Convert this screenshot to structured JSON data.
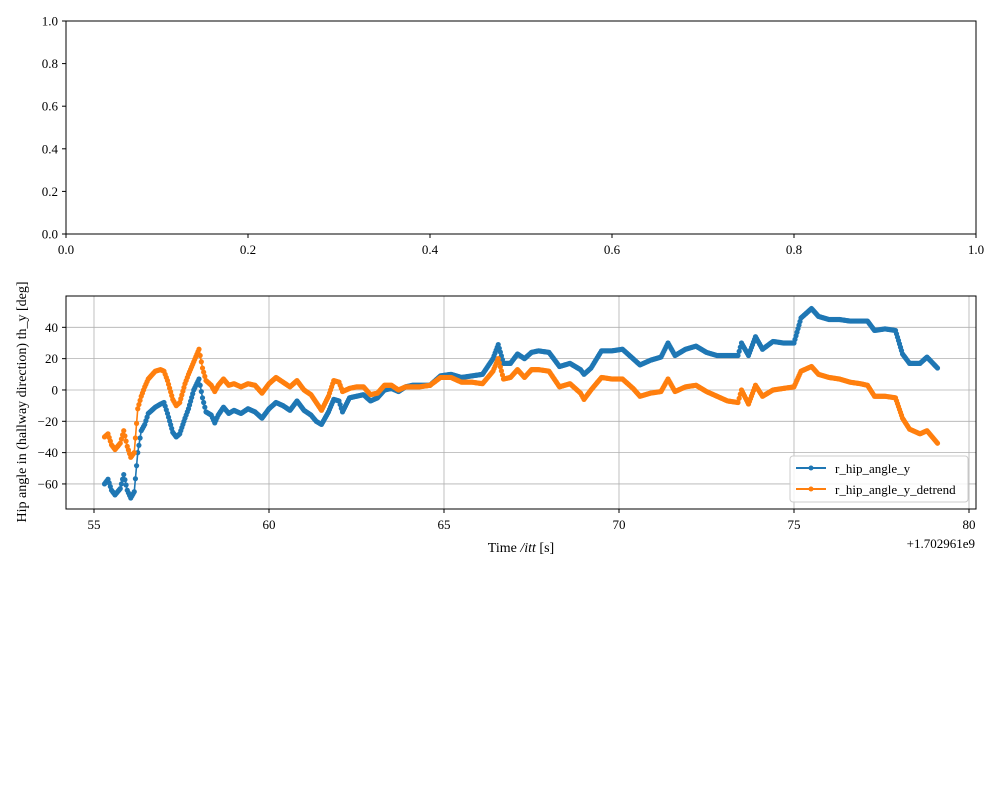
{
  "chart_data": [
    {
      "type": "line",
      "empty": true,
      "xlim": [
        0.0,
        1.0
      ],
      "ylim": [
        0.0,
        1.0
      ],
      "x_ticks": [
        "0.0",
        "0.2",
        "0.4",
        "0.6",
        "0.8",
        "1.0"
      ],
      "y_ticks": [
        "0.0",
        "0.2",
        "0.4",
        "0.6",
        "0.8",
        "1.0"
      ],
      "grid": false
    },
    {
      "type": "line",
      "xlabel_pre": "Time ",
      "xlabel_math": "/itt",
      "xlabel_post": " [s]",
      "ylabel": "Hip angle in (hallway direction) th_y [deg]",
      "x_offset_label": "+1.702961e9",
      "xlim": [
        54.2,
        80.2
      ],
      "ylim": [
        -76,
        60
      ],
      "x_ticks": [
        55,
        60,
        65,
        70,
        75,
        80
      ],
      "x_tick_labels": [
        "55",
        "60",
        "65",
        "70",
        "75",
        "80"
      ],
      "y_ticks": [
        -60,
        -40,
        -20,
        0,
        20,
        40
      ],
      "y_tick_labels": [
        "−60",
        "−40",
        "−20",
        "0",
        "20",
        "40"
      ],
      "grid": true,
      "legend_position": "lower-right",
      "series": [
        {
          "name": "r_hip_angle_y",
          "color": "#1f77b4",
          "points": [
            [
              55.3,
              -60
            ],
            [
              55.4,
              -57
            ],
            [
              55.5,
              -64
            ],
            [
              55.6,
              -67
            ],
            [
              55.75,
              -63
            ],
            [
              55.85,
              -54
            ],
            [
              55.95,
              -64
            ],
            [
              56.05,
              -69
            ],
            [
              56.15,
              -65
            ],
            [
              56.25,
              -40
            ],
            [
              56.35,
              -26
            ],
            [
              56.45,
              -22
            ],
            [
              56.55,
              -15
            ],
            [
              56.75,
              -11
            ],
            [
              56.9,
              -9
            ],
            [
              57.0,
              -8
            ],
            [
              57.1,
              -15
            ],
            [
              57.25,
              -27
            ],
            [
              57.35,
              -30
            ],
            [
              57.45,
              -28
            ],
            [
              57.6,
              -18
            ],
            [
              57.7,
              -12
            ],
            [
              57.85,
              0
            ],
            [
              58.0,
              7
            ],
            [
              58.1,
              -5
            ],
            [
              58.2,
              -14
            ],
            [
              58.35,
              -16
            ],
            [
              58.45,
              -21
            ],
            [
              58.55,
              -16
            ],
            [
              58.7,
              -11
            ],
            [
              58.85,
              -15
            ],
            [
              59.0,
              -13
            ],
            [
              59.2,
              -15
            ],
            [
              59.4,
              -12
            ],
            [
              59.6,
              -14
            ],
            [
              59.8,
              -18
            ],
            [
              60.0,
              -12
            ],
            [
              60.2,
              -8
            ],
            [
              60.4,
              -10
            ],
            [
              60.6,
              -13
            ],
            [
              60.8,
              -7
            ],
            [
              61.0,
              -13
            ],
            [
              61.2,
              -16
            ],
            [
              61.35,
              -20
            ],
            [
              61.5,
              -22
            ],
            [
              61.7,
              -14
            ],
            [
              61.85,
              -6
            ],
            [
              62.0,
              -7
            ],
            [
              62.1,
              -14
            ],
            [
              62.3,
              -5
            ],
            [
              62.5,
              -4
            ],
            [
              62.7,
              -3
            ],
            [
              62.9,
              -7
            ],
            [
              63.1,
              -5
            ],
            [
              63.3,
              0
            ],
            [
              63.5,
              1
            ],
            [
              63.7,
              -1
            ],
            [
              63.9,
              2
            ],
            [
              64.1,
              3
            ],
            [
              64.3,
              3
            ],
            [
              64.6,
              3
            ],
            [
              64.9,
              9
            ],
            [
              65.2,
              10
            ],
            [
              65.5,
              8
            ],
            [
              65.8,
              9
            ],
            [
              66.1,
              10
            ],
            [
              66.4,
              20
            ],
            [
              66.55,
              29
            ],
            [
              66.7,
              17
            ],
            [
              66.9,
              17
            ],
            [
              67.1,
              23
            ],
            [
              67.3,
              20
            ],
            [
              67.5,
              24
            ],
            [
              67.7,
              25
            ],
            [
              68.0,
              24
            ],
            [
              68.3,
              15
            ],
            [
              68.6,
              17
            ],
            [
              68.9,
              13
            ],
            [
              69.0,
              10
            ],
            [
              69.2,
              14
            ],
            [
              69.5,
              25
            ],
            [
              69.8,
              25
            ],
            [
              70.1,
              26
            ],
            [
              70.4,
              20
            ],
            [
              70.6,
              16
            ],
            [
              70.9,
              19
            ],
            [
              71.2,
              21
            ],
            [
              71.4,
              30
            ],
            [
              71.6,
              22
            ],
            [
              71.9,
              26
            ],
            [
              72.2,
              28
            ],
            [
              72.5,
              24
            ],
            [
              72.8,
              22
            ],
            [
              73.1,
              22
            ],
            [
              73.4,
              22
            ],
            [
              73.5,
              30
            ],
            [
              73.7,
              22
            ],
            [
              73.9,
              34
            ],
            [
              74.1,
              26
            ],
            [
              74.4,
              31
            ],
            [
              74.7,
              30
            ],
            [
              75.0,
              30
            ],
            [
              75.2,
              46
            ],
            [
              75.5,
              52
            ],
            [
              75.7,
              47
            ],
            [
              76.0,
              45
            ],
            [
              76.3,
              45
            ],
            [
              76.6,
              44
            ],
            [
              76.9,
              44
            ],
            [
              77.1,
              44
            ],
            [
              77.3,
              38
            ],
            [
              77.6,
              39
            ],
            [
              77.9,
              38
            ],
            [
              78.1,
              23
            ],
            [
              78.3,
              17
            ],
            [
              78.6,
              17
            ],
            [
              78.8,
              21
            ],
            [
              79.1,
              14
            ]
          ]
        },
        {
          "name": "r_hip_angle_y_detrend",
          "color": "#ff7f0e",
          "points": [
            [
              55.3,
              -30
            ],
            [
              55.4,
              -28
            ],
            [
              55.5,
              -35
            ],
            [
              55.6,
              -38
            ],
            [
              55.75,
              -34
            ],
            [
              55.85,
              -26
            ],
            [
              55.95,
              -36
            ],
            [
              56.05,
              -43
            ],
            [
              56.15,
              -40
            ],
            [
              56.25,
              -12
            ],
            [
              56.35,
              -4
            ],
            [
              56.45,
              2
            ],
            [
              56.55,
              7
            ],
            [
              56.75,
              12
            ],
            [
              56.9,
              13
            ],
            [
              57.0,
              12
            ],
            [
              57.1,
              6
            ],
            [
              57.25,
              -6
            ],
            [
              57.35,
              -10
            ],
            [
              57.45,
              -8
            ],
            [
              57.6,
              4
            ],
            [
              57.7,
              10
            ],
            [
              57.85,
              18
            ],
            [
              58.0,
              26
            ],
            [
              58.1,
              14
            ],
            [
              58.2,
              6
            ],
            [
              58.35,
              3
            ],
            [
              58.45,
              -1
            ],
            [
              58.55,
              3
            ],
            [
              58.7,
              7
            ],
            [
              58.85,
              3
            ],
            [
              59.0,
              4
            ],
            [
              59.2,
              2
            ],
            [
              59.4,
              4
            ],
            [
              59.6,
              3
            ],
            [
              59.8,
              -2
            ],
            [
              60.0,
              4
            ],
            [
              60.2,
              8
            ],
            [
              60.4,
              5
            ],
            [
              60.6,
              2
            ],
            [
              60.8,
              6
            ],
            [
              61.0,
              0
            ],
            [
              61.2,
              -3
            ],
            [
              61.35,
              -8
            ],
            [
              61.5,
              -13
            ],
            [
              61.7,
              -4
            ],
            [
              61.85,
              6
            ],
            [
              62.0,
              5
            ],
            [
              62.1,
              -1
            ],
            [
              62.3,
              1
            ],
            [
              62.5,
              2
            ],
            [
              62.7,
              2
            ],
            [
              62.9,
              -3
            ],
            [
              63.1,
              -2
            ],
            [
              63.3,
              3
            ],
            [
              63.5,
              3
            ],
            [
              63.7,
              0
            ],
            [
              63.9,
              2
            ],
            [
              64.1,
              2
            ],
            [
              64.3,
              2
            ],
            [
              64.6,
              3
            ],
            [
              64.9,
              8
            ],
            [
              65.2,
              8
            ],
            [
              65.5,
              5
            ],
            [
              65.8,
              5
            ],
            [
              66.1,
              4
            ],
            [
              66.4,
              12
            ],
            [
              66.55,
              20
            ],
            [
              66.7,
              7
            ],
            [
              66.9,
              8
            ],
            [
              67.1,
              13
            ],
            [
              67.3,
              8
            ],
            [
              67.5,
              13
            ],
            [
              67.7,
              13
            ],
            [
              68.0,
              12
            ],
            [
              68.3,
              2
            ],
            [
              68.6,
              4
            ],
            [
              68.9,
              -2
            ],
            [
              69.0,
              -6
            ],
            [
              69.2,
              0
            ],
            [
              69.5,
              8
            ],
            [
              69.8,
              7
            ],
            [
              70.1,
              7
            ],
            [
              70.4,
              1
            ],
            [
              70.6,
              -4
            ],
            [
              70.9,
              -2
            ],
            [
              71.2,
              -1
            ],
            [
              71.4,
              7
            ],
            [
              71.6,
              -1
            ],
            [
              71.9,
              2
            ],
            [
              72.2,
              3
            ],
            [
              72.5,
              -1
            ],
            [
              72.8,
              -4
            ],
            [
              73.1,
              -7
            ],
            [
              73.4,
              -8
            ],
            [
              73.5,
              0
            ],
            [
              73.7,
              -9
            ],
            [
              73.9,
              3
            ],
            [
              74.1,
              -4
            ],
            [
              74.4,
              0
            ],
            [
              74.7,
              1
            ],
            [
              75.0,
              2
            ],
            [
              75.2,
              12
            ],
            [
              75.5,
              15
            ],
            [
              75.7,
              10
            ],
            [
              76.0,
              8
            ],
            [
              76.3,
              7
            ],
            [
              76.6,
              5
            ],
            [
              76.9,
              4
            ],
            [
              77.1,
              3
            ],
            [
              77.3,
              -4
            ],
            [
              77.6,
              -4
            ],
            [
              77.9,
              -5
            ],
            [
              78.1,
              -18
            ],
            [
              78.3,
              -25
            ],
            [
              78.6,
              -28
            ],
            [
              78.8,
              -26
            ],
            [
              79.1,
              -34
            ]
          ]
        }
      ]
    }
  ]
}
